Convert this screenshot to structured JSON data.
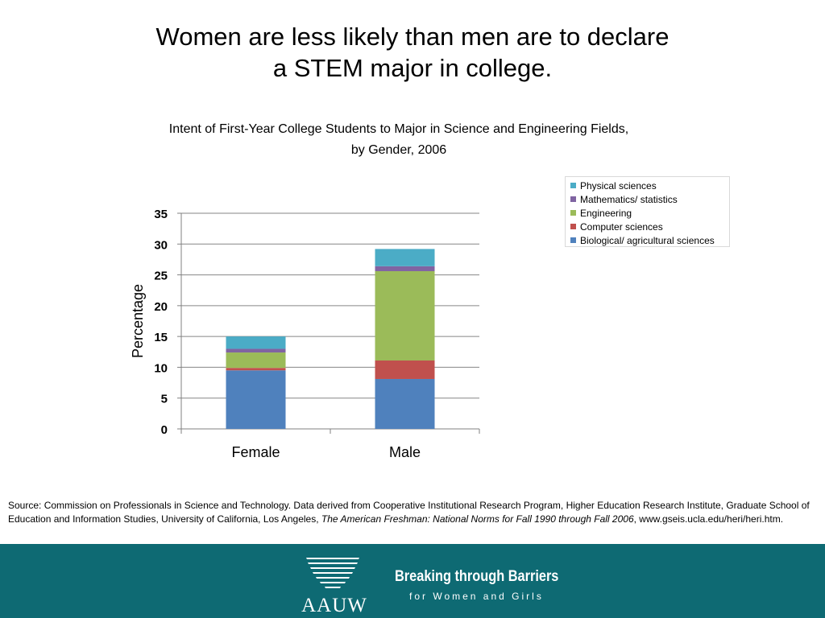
{
  "slide": {
    "title_line1": "Women are less likely than men are to declare",
    "title_line2": "a STEM major in college."
  },
  "chart_data": {
    "type": "bar",
    "stacked": true,
    "title_line1": "Intent of First-Year College Students to Major in Science and Engineering Fields,",
    "title_line2": "by Gender, 2006",
    "ylabel": "Percentage",
    "xlabel": "",
    "ylim": [
      0,
      35
    ],
    "yticks": [
      0,
      5,
      10,
      15,
      20,
      25,
      30,
      35
    ],
    "grid": true,
    "legend_position": "top-right",
    "categories": [
      "Female",
      "Male"
    ],
    "series": [
      {
        "name": "Biological/ agricultural sciences",
        "color": "#4f81bd",
        "values": [
          9.5,
          8.1
        ]
      },
      {
        "name": "Computer sciences",
        "color": "#c0504d",
        "values": [
          0.4,
          3.0
        ]
      },
      {
        "name": "Engineering",
        "color": "#9bbb59",
        "values": [
          2.5,
          14.5
        ]
      },
      {
        "name": "Mathematics/ statistics",
        "color": "#8064a2",
        "values": [
          0.6,
          0.8
        ]
      },
      {
        "name": "Physical sciences",
        "color": "#4bacc6",
        "values": [
          2.0,
          2.8
        ]
      }
    ]
  },
  "source": {
    "prefix": "Source: Commission on Professionals in Science and Technology. Data derived from Cooperative Institutional Research Program, Higher Education Research Institute, Graduate School of Education and Information Studies, University of California, Los Angeles, ",
    "title": "The American Freshman: National Norms for Fall 1990 through Fall 2006",
    "suffix": ", www.gseis.ucla.edu/heri/heri.htm."
  },
  "footer": {
    "logo_text": "AAUW",
    "tagline_main": "Breaking through Barriers",
    "tagline_sub": "for Women and Girls",
    "background_color": "#0e6a73"
  }
}
